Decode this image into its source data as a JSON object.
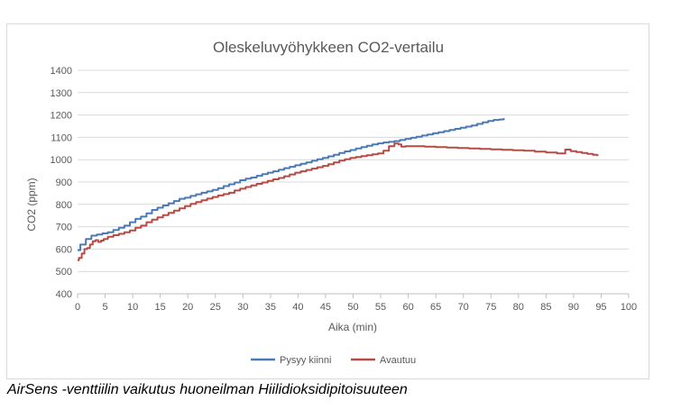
{
  "chart_data": {
    "type": "line",
    "title": "Oleskeluvyöhykkeen CO2-vertailu",
    "xlabel": "Aika (min)",
    "ylabel": "CO2 (ppm)",
    "xlim": [
      0,
      100
    ],
    "ylim": [
      400,
      1400
    ],
    "x_ticks": [
      0,
      5,
      10,
      15,
      20,
      25,
      30,
      35,
      40,
      45,
      50,
      55,
      60,
      65,
      70,
      75,
      80,
      85,
      90,
      95,
      100
    ],
    "y_ticks": [
      400,
      500,
      600,
      700,
      800,
      900,
      1000,
      1100,
      1200,
      1300,
      1400
    ],
    "grid": "horizontal",
    "legend_position": "bottom",
    "series": [
      {
        "name": "Pysyy kiinni",
        "color": "#4a7ab6",
        "points": [
          [
            0,
            595
          ],
          [
            1,
            620
          ],
          [
            2,
            645
          ],
          [
            3,
            660
          ],
          [
            4,
            665
          ],
          [
            5,
            670
          ],
          [
            6,
            675
          ],
          [
            7,
            685
          ],
          [
            8,
            695
          ],
          [
            9,
            705
          ],
          [
            10,
            720
          ],
          [
            11,
            735
          ],
          [
            12,
            745
          ],
          [
            13,
            760
          ],
          [
            14,
            775
          ],
          [
            15,
            785
          ],
          [
            16,
            795
          ],
          [
            17,
            805
          ],
          [
            18,
            815
          ],
          [
            19,
            825
          ],
          [
            20,
            830
          ],
          [
            21,
            838
          ],
          [
            22,
            845
          ],
          [
            23,
            852
          ],
          [
            24,
            858
          ],
          [
            25,
            865
          ],
          [
            26,
            872
          ],
          [
            27,
            882
          ],
          [
            28,
            890
          ],
          [
            29,
            898
          ],
          [
            30,
            908
          ],
          [
            31,
            915
          ],
          [
            32,
            920
          ],
          [
            33,
            928
          ],
          [
            34,
            935
          ],
          [
            35,
            942
          ],
          [
            36,
            948
          ],
          [
            37,
            955
          ],
          [
            38,
            962
          ],
          [
            39,
            968
          ],
          [
            40,
            975
          ],
          [
            41,
            982
          ],
          [
            42,
            988
          ],
          [
            43,
            995
          ],
          [
            44,
            1002
          ],
          [
            45,
            1008
          ],
          [
            46,
            1015
          ],
          [
            47,
            1022
          ],
          [
            48,
            1030
          ],
          [
            49,
            1037
          ],
          [
            50,
            1043
          ],
          [
            51,
            1050
          ],
          [
            52,
            1056
          ],
          [
            53,
            1062
          ],
          [
            54,
            1068
          ],
          [
            55,
            1073
          ],
          [
            56,
            1077
          ],
          [
            57,
            1080
          ],
          [
            58,
            1083
          ],
          [
            59,
            1088
          ],
          [
            60,
            1093
          ],
          [
            61,
            1098
          ],
          [
            62,
            1103
          ],
          [
            63,
            1108
          ],
          [
            64,
            1113
          ],
          [
            65,
            1118
          ],
          [
            66,
            1123
          ],
          [
            67,
            1128
          ],
          [
            68,
            1133
          ],
          [
            69,
            1138
          ],
          [
            70,
            1143
          ],
          [
            71,
            1148
          ],
          [
            72,
            1153
          ],
          [
            73,
            1160
          ],
          [
            74,
            1167
          ],
          [
            75,
            1173
          ],
          [
            76,
            1178
          ],
          [
            77,
            1180
          ],
          [
            77.5,
            1182
          ]
        ]
      },
      {
        "name": "Avautuu",
        "color": "#b84a46",
        "points": [
          [
            0,
            550
          ],
          [
            0.5,
            560
          ],
          [
            1,
            580
          ],
          [
            1.5,
            600
          ],
          [
            2,
            605
          ],
          [
            2.5,
            620
          ],
          [
            3,
            635
          ],
          [
            3.5,
            640
          ],
          [
            4,
            632
          ],
          [
            4.5,
            638
          ],
          [
            5,
            645
          ],
          [
            6,
            655
          ],
          [
            7,
            662
          ],
          [
            8,
            668
          ],
          [
            9,
            675
          ],
          [
            10,
            683
          ],
          [
            11,
            695
          ],
          [
            12,
            705
          ],
          [
            13,
            720
          ],
          [
            14,
            732
          ],
          [
            15,
            742
          ],
          [
            16,
            752
          ],
          [
            17,
            762
          ],
          [
            18,
            772
          ],
          [
            19,
            782
          ],
          [
            20,
            792
          ],
          [
            21,
            802
          ],
          [
            22,
            810
          ],
          [
            23,
            818
          ],
          [
            24,
            826
          ],
          [
            25,
            833
          ],
          [
            26,
            840
          ],
          [
            27,
            846
          ],
          [
            28,
            852
          ],
          [
            29,
            862
          ],
          [
            30,
            870
          ],
          [
            31,
            878
          ],
          [
            32,
            885
          ],
          [
            33,
            892
          ],
          [
            34,
            898
          ],
          [
            35,
            905
          ],
          [
            36,
            912
          ],
          [
            37,
            918
          ],
          [
            38,
            926
          ],
          [
            39,
            934
          ],
          [
            40,
            942
          ],
          [
            41,
            948
          ],
          [
            42,
            954
          ],
          [
            43,
            960
          ],
          [
            44,
            966
          ],
          [
            45,
            972
          ],
          [
            46,
            980
          ],
          [
            47,
            988
          ],
          [
            48,
            996
          ],
          [
            49,
            1002
          ],
          [
            50,
            1008
          ],
          [
            51,
            1012
          ],
          [
            52,
            1016
          ],
          [
            53,
            1020
          ],
          [
            54,
            1024
          ],
          [
            55,
            1028
          ],
          [
            56,
            1040
          ],
          [
            57,
            1060
          ],
          [
            58,
            1072
          ],
          [
            58.5,
            1068
          ],
          [
            59,
            1058
          ],
          [
            60,
            1060
          ],
          [
            62,
            1060
          ],
          [
            64,
            1058
          ],
          [
            66,
            1056
          ],
          [
            68,
            1054
          ],
          [
            70,
            1052
          ],
          [
            72,
            1050
          ],
          [
            74,
            1048
          ],
          [
            76,
            1046
          ],
          [
            78,
            1044
          ],
          [
            80,
            1042
          ],
          [
            82,
            1040
          ],
          [
            84,
            1036
          ],
          [
            86,
            1032
          ],
          [
            88,
            1028
          ],
          [
            89,
            1045
          ],
          [
            90,
            1038
          ],
          [
            91,
            1034
          ],
          [
            92,
            1030
          ],
          [
            93,
            1026
          ],
          [
            94,
            1022
          ],
          [
            94.5,
            1020
          ]
        ]
      }
    ]
  },
  "caption": "AirSens -venttiilin vaikutus huoneilman Hiilidioksidipitoisuuteen"
}
